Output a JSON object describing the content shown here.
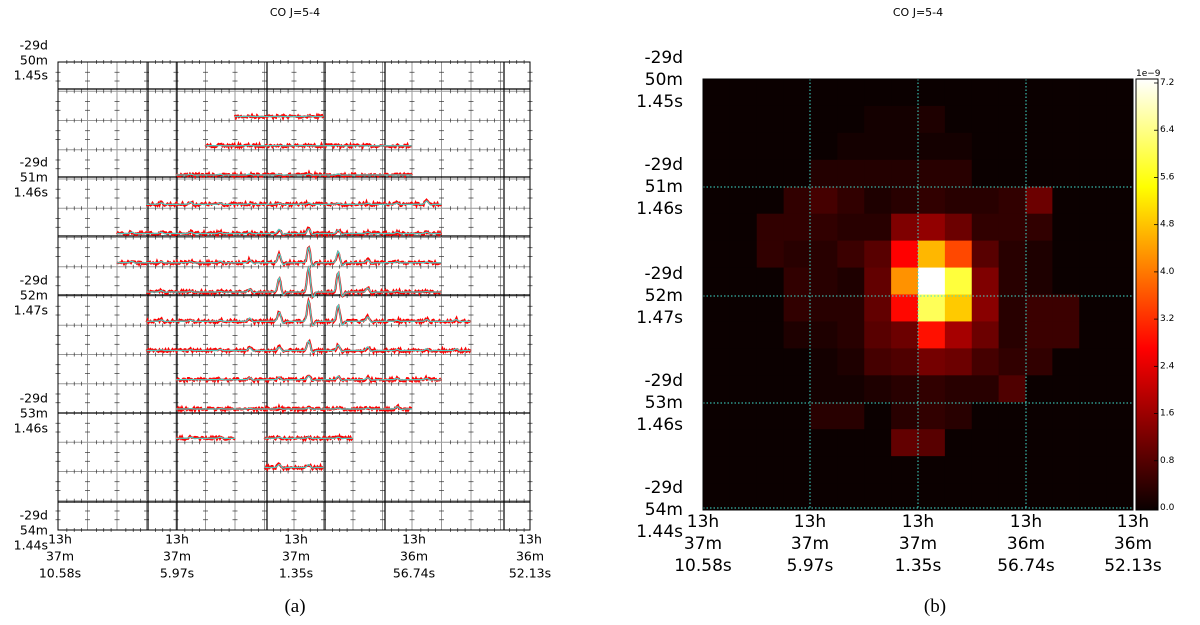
{
  "chart_data": [
    {
      "type": "line",
      "title": "CO J=5-4",
      "caption": "(a)",
      "grid_rows": 16,
      "grid_cols": 16,
      "xticks": [
        [
          "13h",
          "37m",
          "10.58s"
        ],
        [
          "13h",
          "37m",
          "5.97s"
        ],
        [
          "13h",
          "37m",
          "1.35s"
        ],
        [
          "13h",
          "36m",
          "56.74s"
        ],
        [
          "13h",
          "36m",
          "52.13s"
        ]
      ],
      "yticks": [
        [
          "-29d",
          "50m",
          "1.45s"
        ],
        [
          "-29d",
          "51m",
          "1.46s"
        ],
        [
          "-29d",
          "52m",
          "1.47s"
        ],
        [
          "-29d",
          "53m",
          "1.46s"
        ],
        [
          "-29d",
          "54m",
          "1.44s"
        ]
      ],
      "spectra_columns": [
        [],
        [
          [
            6,
            8
          ]
        ],
        [
          [
            5,
            11
          ]
        ],
        [
          [
            4,
            11
          ]
        ],
        [
          [
            3,
            12
          ]
        ],
        [
          [
            2,
            12
          ]
        ],
        [
          [
            2,
            12
          ]
        ],
        [
          [
            3,
            12
          ]
        ],
        [
          [
            3,
            13
          ]
        ],
        [
          [
            3,
            13
          ]
        ],
        [
          [
            4,
            12
          ]
        ],
        [
          [
            4,
            11
          ]
        ],
        [
          [
            4,
            5
          ],
          [
            7,
            9
          ]
        ],
        [
          [
            7,
            8
          ]
        ],
        [],
        []
      ],
      "colors": {
        "data": "#ff0000",
        "fit": "#40e0d0",
        "model": "#808080",
        "major_grid": "#000000",
        "minor_grid": "#999999"
      }
    },
    {
      "type": "heatmap",
      "title": "CO J=5-4",
      "caption": "(b)",
      "colormap": "hot",
      "range": [
        0,
        7.2
      ],
      "xticks": [
        [
          "13h",
          "37m",
          "10.58s"
        ],
        [
          "13h",
          "37m",
          "5.97s"
        ],
        [
          "13h",
          "37m",
          "1.35s"
        ],
        [
          "13h",
          "36m",
          "56.74s"
        ],
        [
          "13h",
          "36m",
          "52.13s"
        ]
      ],
      "yticks": [
        [
          "-29d",
          "50m",
          "1.45s"
        ],
        [
          "-29d",
          "51m",
          "1.46s"
        ],
        [
          "-29d",
          "52m",
          "1.47s"
        ],
        [
          "-29d",
          "53m",
          "1.46s"
        ],
        [
          "-29d",
          "54m",
          "1.44s"
        ]
      ],
      "grid": "dotted",
      "grid_color": "#40e0d0",
      "colorbar": {
        "label": "1e−9",
        "ticks": [
          "0.0",
          "0.8",
          "1.6",
          "2.4",
          "3.2",
          "4.0",
          "4.8",
          "5.6",
          "6.4",
          "7.2"
        ]
      },
      "values": [
        [
          0,
          0,
          0,
          0,
          0,
          0,
          0,
          0,
          0,
          0,
          0,
          0,
          0,
          0,
          0,
          0
        ],
        [
          0,
          0,
          0,
          0,
          0,
          0,
          0.1,
          0.1,
          0.2,
          0,
          0,
          0,
          0,
          0,
          0,
          0
        ],
        [
          0,
          0,
          0,
          0,
          0,
          0.1,
          0.1,
          0.1,
          0.1,
          0.1,
          0,
          0,
          0,
          0,
          0,
          0
        ],
        [
          0,
          0,
          0,
          0,
          0.25,
          0.25,
          0.25,
          0.25,
          0.3,
          0.3,
          0,
          0,
          0,
          0,
          0,
          0
        ],
        [
          0,
          0,
          0,
          0.4,
          0.6,
          0.4,
          0.2,
          0.3,
          0.4,
          0.3,
          0.3,
          0.4,
          1.0,
          0,
          0,
          0
        ],
        [
          0,
          0,
          0.4,
          0.4,
          0.4,
          0.3,
          0.3,
          1.2,
          1.4,
          1.0,
          0.4,
          0.4,
          0.4,
          0,
          0,
          0
        ],
        [
          0,
          0,
          0.4,
          0.3,
          0.3,
          0.5,
          0.8,
          2.6,
          4.6,
          3.4,
          0.8,
          0.3,
          0.2,
          0,
          0,
          0
        ],
        [
          0,
          0,
          0,
          0.4,
          0.3,
          0.2,
          0.9,
          4.2,
          7.2,
          5.8,
          1.2,
          0.3,
          0.2,
          0,
          0,
          0
        ],
        [
          0,
          0,
          0,
          0.4,
          0.3,
          0.3,
          0.9,
          2.7,
          6.0,
          4.8,
          1.3,
          0.3,
          0.5,
          0.5,
          0,
          0
        ],
        [
          0,
          0,
          0,
          0.2,
          0.2,
          0.3,
          0.8,
          1.0,
          2.8,
          1.6,
          1.0,
          0.3,
          0.5,
          0.5,
          0,
          0
        ],
        [
          0,
          0,
          0,
          0,
          0.1,
          0.2,
          0.6,
          0.7,
          1.1,
          1.0,
          0.6,
          0.4,
          0.4,
          0,
          0,
          0
        ],
        [
          0,
          0,
          0,
          0,
          0.1,
          0.1,
          0.2,
          0.3,
          0.4,
          0.3,
          0.3,
          0.7,
          0,
          0,
          0,
          0
        ],
        [
          0,
          0,
          0,
          0,
          0.3,
          0.3,
          0,
          0.3,
          0.4,
          0.3,
          0,
          0,
          0,
          0,
          0,
          0
        ],
        [
          0,
          0,
          0,
          0,
          0,
          0,
          0,
          0.9,
          0.8,
          0,
          0,
          0,
          0,
          0,
          0,
          0
        ],
        [
          0,
          0,
          0,
          0,
          0,
          0,
          0,
          0,
          0,
          0,
          0,
          0,
          0,
          0,
          0,
          0
        ],
        [
          0,
          0,
          0,
          0,
          0,
          0,
          0,
          0,
          0,
          0,
          0,
          0,
          0,
          0,
          0,
          0
        ]
      ]
    }
  ]
}
